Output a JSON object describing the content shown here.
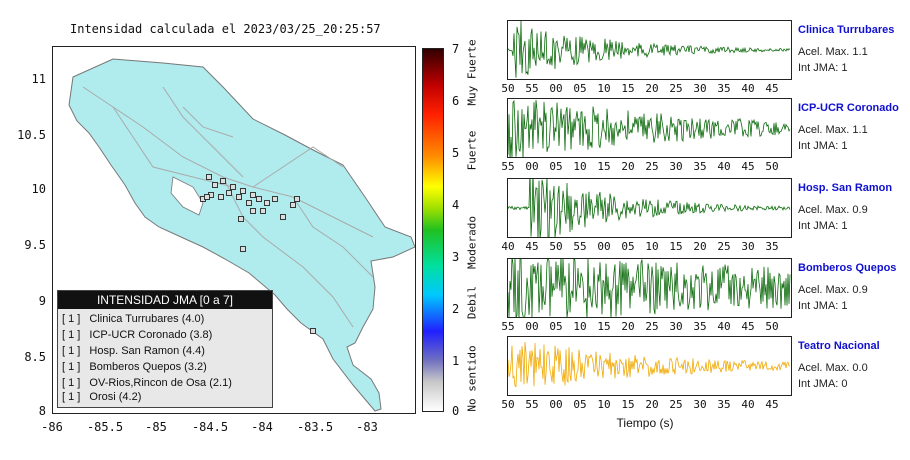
{
  "title": "Intensidad calculada el 2023/03/25_20:25:57",
  "map": {
    "y_ticks": [
      "11",
      "10.5",
      "10",
      "9.5",
      "9",
      "8.5",
      "8"
    ],
    "x_ticks": [
      "-86",
      "-85.5",
      "-85",
      "-84.5",
      "-84",
      "-83.5",
      "-83"
    ],
    "land_color": "#b0ecee",
    "station_marker_color": "#111111"
  },
  "legend": {
    "title": "INTENSIDAD JMA [0 a 7]",
    "items": [
      {
        "intensity": "[ 1 ]",
        "label": "Clinica Turrubares (4.0)"
      },
      {
        "intensity": "[ 1 ]",
        "label": "ICP-UCR Coronado (3.8)"
      },
      {
        "intensity": "[ 1 ]",
        "label": "Hosp. San Ramon (4.4)"
      },
      {
        "intensity": "[ 1 ]",
        "label": "Bomberos Quepos (3.2)"
      },
      {
        "intensity": "[ 1 ]",
        "label": "OV-Rios,Rincon de Osa (2.1)"
      },
      {
        "intensity": "[ 1 ]",
        "label": "Orosi (4.2)"
      }
    ]
  },
  "colorbar": {
    "ticks": [
      "7",
      "6",
      "5",
      "4",
      "3",
      "2",
      "1",
      "0"
    ],
    "labels": [
      "Muy Fuerte",
      "Fuerte",
      "Moderado",
      "Debil",
      "No sentido"
    ]
  },
  "traces": {
    "xlabel": "Tiempo (s)",
    "stations": [
      {
        "name": "Clinica Turrubares",
        "accel": "Acel. Max. 1.1",
        "int": "Int JMA: 1",
        "color": "#0a6a0a",
        "ticks": [
          "50",
          "55",
          "00",
          "05",
          "10",
          "15",
          "20",
          "25",
          "30",
          "35",
          "40",
          "45"
        ],
        "amp": 0.55,
        "onset": 0.02,
        "decay": 3.2
      },
      {
        "name": "ICP-UCR Coronado",
        "accel": "Acel. Max. 1.1",
        "int": "Int JMA: 1",
        "color": "#0a6a0a",
        "ticks": [
          "55",
          "00",
          "05",
          "10",
          "15",
          "20",
          "25",
          "30",
          "35",
          "40",
          "45",
          "50"
        ],
        "amp": 0.6,
        "onset": 0.0,
        "decay": 1.6
      },
      {
        "name": "Hosp. San Ramon",
        "accel": "Acel. Max. 0.9",
        "int": "Int JMA: 1",
        "color": "#0a6a0a",
        "ticks": [
          "40",
          "45",
          "50",
          "55",
          "00",
          "05",
          "10",
          "15",
          "20",
          "25",
          "30",
          "35"
        ],
        "amp": 0.7,
        "onset": 0.08,
        "decay": 3.5
      },
      {
        "name": "Bomberos Quepos",
        "accel": "Acel. Max. 0.9",
        "int": "Int JMA: 1",
        "color": "#0a6a0a",
        "ticks": [
          "55",
          "00",
          "05",
          "10",
          "15",
          "20",
          "25",
          "30",
          "35",
          "40",
          "45",
          "50"
        ],
        "amp": 0.65,
        "onset": 0.0,
        "decay": 0.6
      },
      {
        "name": "Teatro Nacional",
        "accel": "Acel. Max. 0.0",
        "int": "Int JMA: 0",
        "color": "#f0a800",
        "ticks": [
          "50",
          "55",
          "00",
          "05",
          "10",
          "15",
          "20",
          "25",
          "30",
          "35",
          "40",
          "45"
        ],
        "amp": 0.5,
        "onset": 0.0,
        "decay": 2.0
      }
    ]
  },
  "chart_data": [
    {
      "type": "scatter",
      "title": "Intensidad calculada el 2023/03/25_20:25:57",
      "xlabel": "",
      "ylabel": "",
      "xlim": [
        -86,
        -82.5
      ],
      "ylim": [
        8,
        11.3
      ],
      "series": [],
      "legend_title": "INTENSIDAD JMA [0 a 7]",
      "legend_placement": "bottom-left"
    },
    {
      "type": "line",
      "xlabel": "Tiempo (s)",
      "series": [
        {
          "name": "Clinica Turrubares"
        },
        {
          "name": "ICP-UCR Coronado"
        },
        {
          "name": "Hosp. San Ramon"
        },
        {
          "name": "Bomberos Quepos"
        },
        {
          "name": "Teatro Nacional"
        }
      ]
    }
  ]
}
